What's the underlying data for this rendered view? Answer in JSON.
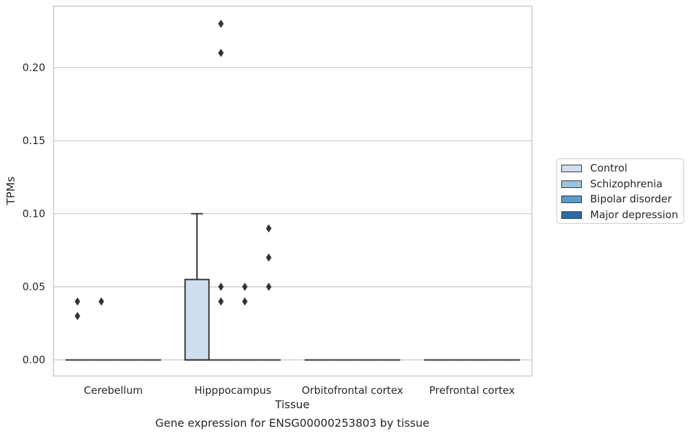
{
  "chart_data": {
    "type": "box",
    "title": "",
    "caption": "Gene expression for ENSG00000253803 by tissue",
    "xlabel": "Tissue",
    "ylabel": "TPMs",
    "ylim": [
      -0.011,
      0.242
    ],
    "yticks": [
      0.0,
      0.05,
      0.1,
      0.15,
      0.2
    ],
    "ytick_labels": [
      "0.00",
      "0.05",
      "0.10",
      "0.15",
      "0.20"
    ],
    "grid": "horizontal",
    "legend_position": "center right, outside plot",
    "categories": [
      "Cerebellum",
      "Hipppocampus",
      "Orbitofrontal cortex",
      "Prefrontal cortex"
    ],
    "series": [
      {
        "name": "Control",
        "color": "#d0dff0",
        "boxes": [
          {
            "category": "Cerebellum",
            "q1": 0,
            "median": 0,
            "q3": 0,
            "whisker_low": 0,
            "whisker_high": 0,
            "outliers": [
              0.03,
              0.04
            ]
          },
          {
            "category": "Hipppocampus",
            "q1": 0,
            "median": 0,
            "q3": 0.055,
            "whisker_low": 0,
            "whisker_high": 0.1,
            "outliers": []
          },
          {
            "category": "Orbitofrontal cortex",
            "q1": 0,
            "median": 0,
            "q3": 0,
            "whisker_low": 0,
            "whisker_high": 0,
            "outliers": []
          },
          {
            "category": "Prefrontal cortex",
            "q1": 0,
            "median": 0,
            "q3": 0,
            "whisker_low": 0,
            "whisker_high": 0,
            "outliers": []
          }
        ]
      },
      {
        "name": "Schizophrenia",
        "color": "#9cc3de",
        "boxes": [
          {
            "category": "Cerebellum",
            "q1": 0,
            "median": 0,
            "q3": 0,
            "whisker_low": 0,
            "whisker_high": 0,
            "outliers": [
              0.04
            ]
          },
          {
            "category": "Hipppocampus",
            "q1": 0,
            "median": 0,
            "q3": 0,
            "whisker_low": 0,
            "whisker_high": 0,
            "outliers": [
              0.23,
              0.21,
              0.05,
              0.04
            ]
          },
          {
            "category": "Orbitofrontal cortex",
            "q1": 0,
            "median": 0,
            "q3": 0,
            "whisker_low": 0,
            "whisker_high": 0,
            "outliers": []
          },
          {
            "category": "Prefrontal cortex",
            "q1": 0,
            "median": 0,
            "q3": 0,
            "whisker_low": 0,
            "whisker_high": 0,
            "outliers": []
          }
        ]
      },
      {
        "name": "Bipolar disorder",
        "color": "#5b9bc8",
        "boxes": [
          {
            "category": "Cerebellum",
            "q1": 0,
            "median": 0,
            "q3": 0,
            "whisker_low": 0,
            "whisker_high": 0,
            "outliers": []
          },
          {
            "category": "Hipppocampus",
            "q1": 0,
            "median": 0,
            "q3": 0,
            "whisker_low": 0,
            "whisker_high": 0,
            "outliers": [
              0.05,
              0.04
            ]
          },
          {
            "category": "Orbitofrontal cortex",
            "q1": 0,
            "median": 0,
            "q3": 0,
            "whisker_low": 0,
            "whisker_high": 0,
            "outliers": []
          },
          {
            "category": "Prefrontal cortex",
            "q1": 0,
            "median": 0,
            "q3": 0,
            "whisker_low": 0,
            "whisker_high": 0,
            "outliers": []
          }
        ]
      },
      {
        "name": "Major depression",
        "color": "#2b6ca8",
        "boxes": [
          {
            "category": "Cerebellum",
            "q1": 0,
            "median": 0,
            "q3": 0,
            "whisker_low": 0,
            "whisker_high": 0,
            "outliers": []
          },
          {
            "category": "Hipppocampus",
            "q1": 0,
            "median": 0,
            "q3": 0,
            "whisker_low": 0,
            "whisker_high": 0,
            "outliers": [
              0.09,
              0.07,
              0.05
            ]
          },
          {
            "category": "Orbitofrontal cortex",
            "q1": 0,
            "median": 0,
            "q3": 0,
            "whisker_low": 0,
            "whisker_high": 0,
            "outliers": []
          },
          {
            "category": "Prefrontal cortex",
            "q1": 0,
            "median": 0,
            "q3": 0,
            "whisker_low": 0,
            "whisker_high": 0,
            "outliers": []
          }
        ]
      }
    ]
  }
}
